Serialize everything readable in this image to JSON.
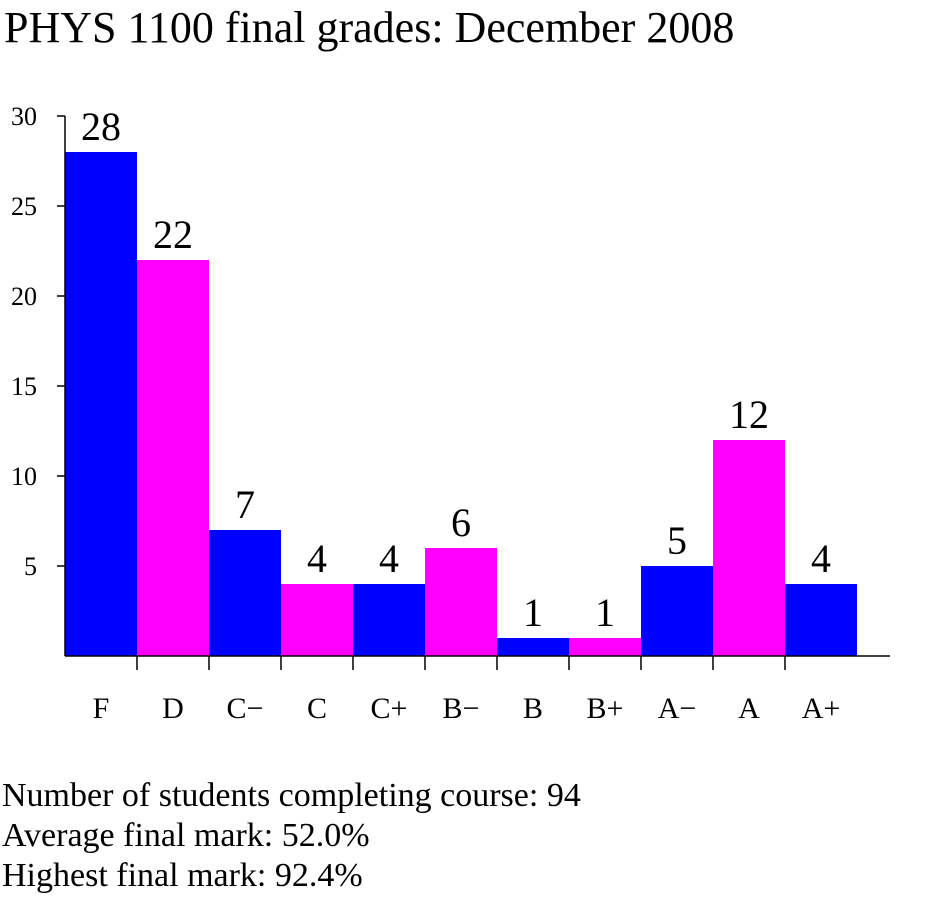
{
  "chart_data": {
    "type": "bar",
    "title": "PHYS 1100 final grades: December 2008",
    "categories": [
      "F",
      "D",
      "C−",
      "C",
      "C+",
      "B−",
      "B",
      "B+",
      "A−",
      "A",
      "A+"
    ],
    "values": [
      28,
      22,
      7,
      4,
      4,
      6,
      1,
      1,
      5,
      12,
      4
    ],
    "colors": [
      "#0000ff",
      "#ff00ff",
      "#0000ff",
      "#ff00ff",
      "#0000ff",
      "#ff00ff",
      "#0000ff",
      "#ff00ff",
      "#0000ff",
      "#ff00ff",
      "#0000ff"
    ],
    "ylim": [
      0,
      30
    ],
    "yticks": [
      5,
      10,
      15,
      20,
      25,
      30
    ],
    "grid": false,
    "notes": [
      "Number of students completing course: 94",
      "Average final mark: 52.0%",
      "Highest final mark: 92.4%"
    ]
  }
}
